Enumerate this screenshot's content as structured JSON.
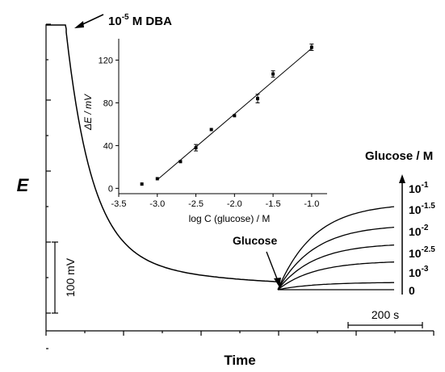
{
  "chart_data": [
    {
      "type": "line",
      "xlabel": "Time",
      "ylabel": "E",
      "annotations": {
        "dba": {
          "base": "10",
          "exp": "-5",
          "rest": " M DBA"
        },
        "glucose_arrow": "Glucose",
        "legend_title": "Glucose / M",
        "scale_bar_y": "100 mV",
        "scale_bar_x": "200 s"
      },
      "concentration_labels": [
        {
          "base": "10",
          "exp": "-1"
        },
        {
          "base": "10",
          "exp": "-1.5"
        },
        {
          "base": "10",
          "exp": "-2"
        },
        {
          "base": "10",
          "exp": "-2.5"
        },
        {
          "base": "10",
          "exp": "-3"
        },
        {
          "base": "",
          "exp": "",
          "plain": "0"
        }
      ],
      "series_end_rise_mV": [
        117,
        88,
        63,
        39,
        10,
        0
      ],
      "grid": false
    },
    {
      "type": "scatter",
      "xlabel": "log C (glucose) / M",
      "ylabel": "ΔE / mV",
      "xlim": [
        -3.5,
        -0.8
      ],
      "ylim": [
        -5,
        140
      ],
      "xticks": [
        "-3.5",
        "-3.0",
        "-2.5",
        "-2.0",
        "-1.5",
        "-1.0"
      ],
      "yticks": [
        "0",
        "40",
        "80",
        "120"
      ],
      "x": [
        -3.2,
        -3.0,
        -2.7,
        -2.5,
        -2.3,
        -2.0,
        -1.7,
        -1.5,
        -1.0
      ],
      "y": [
        4,
        9,
        25,
        38,
        55,
        68,
        84,
        107,
        132
      ],
      "err": [
        0,
        0,
        0,
        3,
        0,
        0,
        4,
        3,
        3
      ],
      "fit": {
        "x": [
          -3.0,
          -1.0
        ],
        "y": [
          8,
          131
        ]
      },
      "grid": false
    }
  ]
}
